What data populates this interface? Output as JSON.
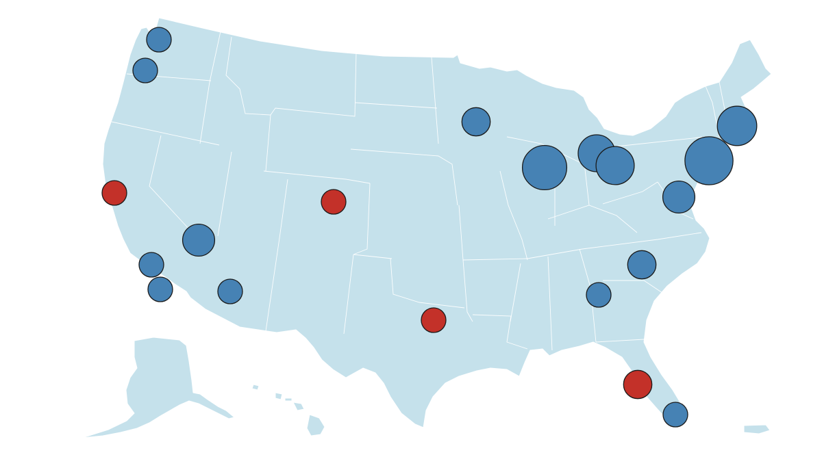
{
  "map": {
    "colors": {
      "land": "#c5e1eb",
      "border": "#ffffff",
      "marker_blue": "#4682b4",
      "marker_red": "#c33129",
      "marker_stroke": "#1a1a1a"
    },
    "markers": [
      {
        "id": "marker-1",
        "color": "blue",
        "size": 1.0
      },
      {
        "id": "marker-2",
        "color": "blue",
        "size": 1.0
      },
      {
        "id": "marker-3",
        "color": "red",
        "size": 1.0
      },
      {
        "id": "marker-4",
        "color": "blue",
        "size": 1.3
      },
      {
        "id": "marker-5",
        "color": "blue",
        "size": 1.0
      },
      {
        "id": "marker-6",
        "color": "blue",
        "size": 1.0
      },
      {
        "id": "marker-7",
        "color": "blue",
        "size": 1.0
      },
      {
        "id": "marker-8",
        "color": "red",
        "size": 1.0
      },
      {
        "id": "marker-9",
        "color": "blue",
        "size": 1.15
      },
      {
        "id": "marker-10",
        "color": "red",
        "size": 1.0
      },
      {
        "id": "marker-11",
        "color": "blue",
        "size": 1.8
      },
      {
        "id": "marker-12",
        "color": "blue",
        "size": 1.5
      },
      {
        "id": "marker-13",
        "color": "blue",
        "size": 1.55
      },
      {
        "id": "marker-14",
        "color": "blue",
        "size": 1.3
      },
      {
        "id": "marker-15",
        "color": "blue",
        "size": 1.15
      },
      {
        "id": "marker-16",
        "color": "blue",
        "size": 1.0
      },
      {
        "id": "marker-17",
        "color": "blue",
        "size": 1.95
      },
      {
        "id": "marker-18",
        "color": "blue",
        "size": 1.6
      },
      {
        "id": "marker-19",
        "color": "red",
        "size": 1.15
      },
      {
        "id": "marker-20",
        "color": "blue",
        "size": 1.0
      }
    ]
  }
}
